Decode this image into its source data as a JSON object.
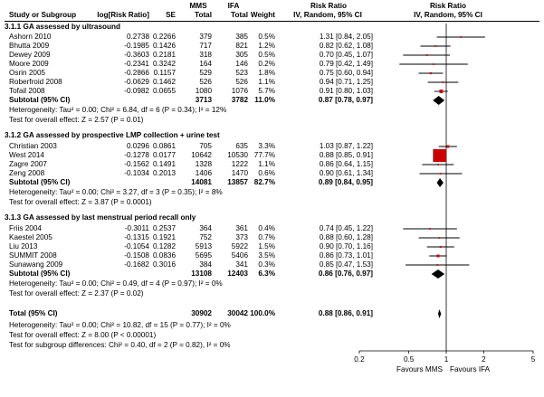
{
  "header": {
    "group1_a": "MMS",
    "group1_b": "IFA",
    "study": "Study or Subgroup",
    "logrr": "log[Risk Ratio]",
    "se": "SE",
    "total_a": "Total",
    "total_b": "Total",
    "weight": "Weight",
    "rr_title": "Risk Ratio",
    "rr_method": "IV, Random, 95% CI",
    "plot_title": "Risk Ratio",
    "plot_method": "IV, Random, 95% CI"
  },
  "subgroups": [
    {
      "title": "3.1.1 GA assessed by ultrasound",
      "studies": [
        {
          "name": "Ashorn 2010",
          "logrr": "0.2738",
          "se": "0.2266",
          "ta": "379",
          "tb": "385",
          "w": "0.5%",
          "ci": "1.31 [0.84, 2.05]",
          "rr": 1.31,
          "lo": 0.84,
          "hi": 2.05,
          "wt": 0.5
        },
        {
          "name": "Bhutta 2009",
          "logrr": "-0.1985",
          "se": "0.1426",
          "ta": "717",
          "tb": "821",
          "w": "1.2%",
          "ci": "0.82 [0.62, 1.08]",
          "rr": 0.82,
          "lo": 0.62,
          "hi": 1.08,
          "wt": 1.2
        },
        {
          "name": "Dewey 2009",
          "logrr": "-0.3603",
          "se": "0.2181",
          "ta": "318",
          "tb": "305",
          "w": "0.5%",
          "ci": "0.70 [0.45, 1.07]",
          "rr": 0.7,
          "lo": 0.45,
          "hi": 1.07,
          "wt": 0.5
        },
        {
          "name": "Moore 2009",
          "logrr": "-0.2341",
          "se": "0.3242",
          "ta": "164",
          "tb": "146",
          "w": "0.2%",
          "ci": "0.79 [0.42, 1.49]",
          "rr": 0.79,
          "lo": 0.42,
          "hi": 1.49,
          "wt": 0.2
        },
        {
          "name": "Osrin 2005",
          "logrr": "-0.2866",
          "se": "0.1157",
          "ta": "529",
          "tb": "523",
          "w": "1.8%",
          "ci": "0.75 [0.60, 0.94]",
          "rr": 0.75,
          "lo": 0.6,
          "hi": 0.94,
          "wt": 1.8
        },
        {
          "name": "Roberfroid 2008",
          "logrr": "-0.0629",
          "se": "0.1462",
          "ta": "526",
          "tb": "526",
          "w": "1.1%",
          "ci": "0.94 [0.71, 1.25]",
          "rr": 0.94,
          "lo": 0.71,
          "hi": 1.25,
          "wt": 1.1
        },
        {
          "name": "Tofail 2008",
          "logrr": "-0.0982",
          "se": "0.0655",
          "ta": "1080",
          "tb": "1076",
          "w": "5.7%",
          "ci": "0.91 [0.80, 1.03]",
          "rr": 0.91,
          "lo": 0.8,
          "hi": 1.03,
          "wt": 5.7
        }
      ],
      "subtotal": {
        "label": "Subtotal (95% CI)",
        "ta": "3713",
        "tb": "3782",
        "w": "11.0%",
        "ci": "0.87 [0.78, 0.97]",
        "rr": 0.87,
        "lo": 0.78,
        "hi": 0.97
      },
      "heterogeneity": "Heterogeneity: Tau² = 0.00; Chi² = 6.84, df = 6 (P = 0.34); I² = 12%",
      "overall": "Test for overall effect: Z = 2.57 (P = 0.01)"
    },
    {
      "title": "3.1.2 GA assessed by prospective LMP collection + urine test",
      "studies": [
        {
          "name": "Christian 2003",
          "logrr": "0.0296",
          "se": "0.0861",
          "ta": "705",
          "tb": "635",
          "w": "3.3%",
          "ci": "1.03 [0.87, 1.22]",
          "rr": 1.03,
          "lo": 0.87,
          "hi": 1.22,
          "wt": 3.3
        },
        {
          "name": "West 2014",
          "logrr": "-0.1278",
          "se": "0.0177",
          "ta": "10642",
          "tb": "10530",
          "w": "77.7%",
          "ci": "0.88 [0.85, 0.91]",
          "rr": 0.88,
          "lo": 0.85,
          "hi": 0.91,
          "wt": 77.7
        },
        {
          "name": "Zagre 2007",
          "logrr": "-0.1562",
          "se": "0.1491",
          "ta": "1328",
          "tb": "1222",
          "w": "1.1%",
          "ci": "0.86 [0.64, 1.15]",
          "rr": 0.86,
          "lo": 0.64,
          "hi": 1.15,
          "wt": 1.1
        },
        {
          "name": "Zeng 2008",
          "logrr": "-0.1034",
          "se": "0.2013",
          "ta": "1406",
          "tb": "1470",
          "w": "0.6%",
          "ci": "0.90 [0.61, 1.34]",
          "rr": 0.9,
          "lo": 0.61,
          "hi": 1.34,
          "wt": 0.6
        }
      ],
      "subtotal": {
        "label": "Subtotal (95% CI)",
        "ta": "14081",
        "tb": "13857",
        "w": "82.7%",
        "ci": "0.89 [0.84, 0.95]",
        "rr": 0.89,
        "lo": 0.84,
        "hi": 0.95
      },
      "heterogeneity": "Heterogeneity: Tau² = 0.00; Chi² = 3.27, df = 3 (P = 0.35); I² = 8%",
      "overall": "Test for overall effect: Z = 3.87 (P = 0.0001)"
    },
    {
      "title": "3.1.3 GA assessed by last menstrual period recall only",
      "studies": [
        {
          "name": "Friis 2004",
          "logrr": "-0.3011",
          "se": "0.2537",
          "ta": "364",
          "tb": "361",
          "w": "0.4%",
          "ci": "0.74 [0.45, 1.22]",
          "rr": 0.74,
          "lo": 0.45,
          "hi": 1.22,
          "wt": 0.4
        },
        {
          "name": "Kaestel 2005",
          "logrr": "-0.1315",
          "se": "0.1921",
          "ta": "752",
          "tb": "373",
          "w": "0.7%",
          "ci": "0.88 [0.60, 1.28]",
          "rr": 0.88,
          "lo": 0.6,
          "hi": 1.28,
          "wt": 0.7
        },
        {
          "name": "Liu 2013",
          "logrr": "-0.1054",
          "se": "0.1282",
          "ta": "5913",
          "tb": "5922",
          "w": "1.5%",
          "ci": "0.90 [0.70, 1.16]",
          "rr": 0.9,
          "lo": 0.7,
          "hi": 1.16,
          "wt": 1.5
        },
        {
          "name": "SUMMIT 2008",
          "logrr": "-0.1508",
          "se": "0.0836",
          "ta": "5695",
          "tb": "5406",
          "w": "3.5%",
          "ci": "0.86 [0.73, 1.01]",
          "rr": 0.86,
          "lo": 0.73,
          "hi": 1.01,
          "wt": 3.5
        },
        {
          "name": "Sunawang 2009",
          "logrr": "-0.1682",
          "se": "0.3016",
          "ta": "384",
          "tb": "341",
          "w": "0.3%",
          "ci": "0.85 [0.47, 1.53]",
          "rr": 0.85,
          "lo": 0.47,
          "hi": 1.53,
          "wt": 0.3
        }
      ],
      "subtotal": {
        "label": "Subtotal (95% CI)",
        "ta": "13108",
        "tb": "12403",
        "w": "6.3%",
        "ci": "0.86 [0.76, 0.97]",
        "rr": 0.86,
        "lo": 0.76,
        "hi": 0.97
      },
      "heterogeneity": "Heterogeneity: Tau² = 0.00; Chi² = 0.49, df = 4 (P = 0.97); I² = 0%",
      "overall": "Test for overall effect: Z = 2.37 (P = 0.02)"
    }
  ],
  "total": {
    "label": "Total (95% CI)",
    "ta": "30902",
    "tb": "30042",
    "w": "100.0%",
    "ci": "0.88 [0.86, 0.91]",
    "rr": 0.88,
    "lo": 0.86,
    "hi": 0.91
  },
  "footer": {
    "heterogeneity": "Heterogeneity: Tau² = 0.00; Chi² = 10.82, df = 15 (P = 0.77); I² = 0%",
    "overall": "Test for overall effect: Z = 8.00 (P < 0.00001)",
    "subgroup": "Test for subgroup differences: Chi² = 0.40, df = 2 (P = 0.82), I² = 0%"
  },
  "chart_data": {
    "type": "forest",
    "title": "Risk Ratio",
    "subtitle": "IV, Random, 95% CI",
    "xscale": "log",
    "xlim": [
      0.2,
      5
    ],
    "ticks": [
      "0.2",
      "0.5",
      "1",
      "2",
      "5"
    ],
    "tick_values": [
      0.2,
      0.5,
      1,
      2,
      5
    ],
    "favours_left": "Favours MMS",
    "favours_right": "Favours IFA",
    "colors": {
      "square": "#cc0000",
      "line": "#000000",
      "diamond": "#000000"
    }
  }
}
